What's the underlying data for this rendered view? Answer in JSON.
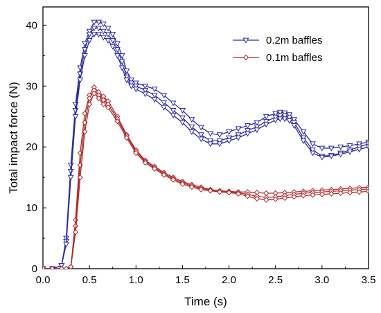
{
  "chart_data": {
    "type": "line",
    "xlabel": "Time (s)",
    "ylabel": "Total impact force (N)",
    "xlim": [
      0.0,
      3.5
    ],
    "ylim": [
      0,
      43
    ],
    "xticks": [
      "0.0",
      "0.5",
      "1.0",
      "1.5",
      "2.0",
      "2.5",
      "3.0",
      "3.5"
    ],
    "yticks": [
      "0",
      "10",
      "20",
      "30",
      "40"
    ],
    "grid": false,
    "legend_position": "top-right",
    "legend": [
      {
        "label": "0.2m baffles",
        "color": "#2b2ba0",
        "marker": "triangle-down"
      },
      {
        "label": "0.1m baffles",
        "color": "#b02a2a",
        "marker": "diamond"
      }
    ],
    "series": [
      {
        "group": "0.2m baffles",
        "color": "#2b2ba0",
        "marker": "triangle-down",
        "x": [
          0.0,
          0.1,
          0.2,
          0.25,
          0.3,
          0.35,
          0.4,
          0.45,
          0.5,
          0.55,
          0.6,
          0.65,
          0.7,
          0.75,
          0.8,
          0.85,
          0.9,
          0.95,
          1.0,
          1.1,
          1.2,
          1.3,
          1.4,
          1.5,
          1.6,
          1.7,
          1.8,
          1.9,
          2.0,
          2.1,
          2.2,
          2.3,
          2.4,
          2.5,
          2.55,
          2.6,
          2.65,
          2.7,
          2.8,
          2.9,
          3.0,
          3.1,
          3.2,
          3.3,
          3.4,
          3.5
        ],
        "y": [
          0,
          0,
          0.5,
          5,
          17,
          27,
          33,
          37,
          39,
          40.5,
          40.5,
          40.2,
          39.5,
          38.5,
          37,
          35,
          32.5,
          31,
          30.5,
          30,
          29.5,
          28.5,
          27.2,
          26,
          24.5,
          23.2,
          22.2,
          22,
          22.5,
          23,
          23.5,
          24,
          25,
          25.5,
          25.7,
          25.6,
          25.3,
          24.5,
          22.5,
          20.5,
          19.8,
          19.8,
          20,
          20.2,
          20.5,
          20.8
        ]
      },
      {
        "group": "0.2m baffles",
        "color": "#2b2ba0",
        "marker": "triangle-down",
        "x": [
          0.0,
          0.1,
          0.2,
          0.25,
          0.3,
          0.35,
          0.4,
          0.45,
          0.5,
          0.55,
          0.6,
          0.65,
          0.7,
          0.75,
          0.8,
          0.85,
          0.9,
          0.95,
          1.0,
          1.1,
          1.2,
          1.3,
          1.4,
          1.5,
          1.6,
          1.7,
          1.8,
          1.9,
          2.0,
          2.1,
          2.2,
          2.3,
          2.4,
          2.5,
          2.55,
          2.6,
          2.65,
          2.7,
          2.8,
          2.9,
          3.0,
          3.1,
          3.2,
          3.3,
          3.4,
          3.5
        ],
        "y": [
          0,
          0,
          0.5,
          4.5,
          16,
          26,
          32,
          36,
          38.5,
          39.5,
          39.5,
          39,
          38.5,
          37.5,
          36,
          34,
          31.5,
          30.5,
          30,
          29.3,
          28.5,
          27.3,
          26,
          24.8,
          23.3,
          22,
          21,
          21,
          21.5,
          22,
          22.7,
          23.3,
          24.2,
          24.9,
          25.1,
          25.1,
          24.8,
          24,
          21.5,
          19.5,
          18.5,
          18.6,
          19,
          19.5,
          20,
          20.5
        ]
      },
      {
        "group": "0.2m baffles",
        "color": "#2b2ba0",
        "marker": "triangle-down",
        "x": [
          0.0,
          0.1,
          0.2,
          0.25,
          0.3,
          0.35,
          0.4,
          0.45,
          0.5,
          0.55,
          0.6,
          0.65,
          0.7,
          0.75,
          0.8,
          0.85,
          0.9,
          0.95,
          1.0,
          1.1,
          1.2,
          1.3,
          1.4,
          1.5,
          1.6,
          1.7,
          1.8,
          1.9,
          2.0,
          2.1,
          2.2,
          2.3,
          2.4,
          2.5,
          2.55,
          2.6,
          2.65,
          2.7,
          2.8,
          2.9,
          3.0,
          3.1,
          3.2,
          3.3,
          3.4,
          3.5
        ],
        "y": [
          0,
          0,
          0.5,
          4,
          15,
          25,
          31,
          35,
          37.5,
          38.5,
          38.5,
          38,
          37.5,
          36.5,
          35,
          33,
          31,
          30,
          29.5,
          28.7,
          27.8,
          26.5,
          25.2,
          24,
          22.5,
          21.3,
          20.5,
          20.5,
          21,
          21.5,
          22.2,
          22.8,
          23.7,
          24.4,
          24.6,
          24.6,
          24.3,
          23.5,
          21,
          19,
          18.3,
          18.5,
          18.8,
          19.2,
          19.6,
          20
        ]
      },
      {
        "group": "0.1m baffles",
        "color": "#b02a2a",
        "marker": "diamond",
        "x": [
          0.0,
          0.1,
          0.2,
          0.25,
          0.3,
          0.35,
          0.4,
          0.45,
          0.5,
          0.55,
          0.6,
          0.65,
          0.7,
          0.8,
          0.9,
          1.0,
          1.1,
          1.2,
          1.3,
          1.4,
          1.5,
          1.6,
          1.7,
          1.8,
          1.9,
          2.0,
          2.1,
          2.2,
          2.3,
          2.4,
          2.5,
          2.6,
          2.7,
          2.8,
          2.9,
          3.0,
          3.1,
          3.2,
          3.3,
          3.4,
          3.5
        ],
        "y": [
          0,
          0,
          0,
          0,
          0.3,
          8,
          19,
          25.5,
          28.5,
          29.8,
          29,
          28.3,
          27.5,
          25,
          22,
          19.5,
          17.8,
          16.8,
          15.8,
          15,
          14.3,
          13.8,
          13.4,
          13,
          12.8,
          12.7,
          12.6,
          12.6,
          12.5,
          12.4,
          12.4,
          12.5,
          12.6,
          12.7,
          12.8,
          12.9,
          13,
          13.1,
          13.2,
          13.3,
          13.4
        ]
      },
      {
        "group": "0.1m baffles",
        "color": "#b02a2a",
        "marker": "diamond",
        "x": [
          0.0,
          0.1,
          0.2,
          0.25,
          0.3,
          0.35,
          0.4,
          0.45,
          0.5,
          0.55,
          0.6,
          0.65,
          0.7,
          0.8,
          0.9,
          1.0,
          1.1,
          1.2,
          1.3,
          1.4,
          1.5,
          1.6,
          1.7,
          1.8,
          1.9,
          2.0,
          2.1,
          2.2,
          2.3,
          2.4,
          2.5,
          2.6,
          2.7,
          2.8,
          2.9,
          3.0,
          3.1,
          3.2,
          3.3,
          3.4,
          3.5
        ],
        "y": [
          0,
          0,
          0,
          0,
          0.3,
          7,
          17,
          24,
          28,
          29.3,
          28.5,
          27.7,
          27,
          24.6,
          21.8,
          19.3,
          17.6,
          16.6,
          15.6,
          14.8,
          14.1,
          13.6,
          13.2,
          12.9,
          12.7,
          12.6,
          12.5,
          12.2,
          11.9,
          11.7,
          11.8,
          12,
          12.2,
          12.4,
          12.5,
          12.6,
          12.7,
          12.8,
          12.9,
          13,
          13.1
        ]
      },
      {
        "group": "0.1m baffles",
        "color": "#b02a2a",
        "marker": "diamond",
        "x": [
          0.0,
          0.1,
          0.2,
          0.25,
          0.3,
          0.35,
          0.4,
          0.45,
          0.5,
          0.55,
          0.6,
          0.65,
          0.7,
          0.8,
          0.9,
          1.0,
          1.1,
          1.2,
          1.3,
          1.4,
          1.5,
          1.6,
          1.7,
          1.8,
          1.9,
          2.0,
          2.1,
          2.2,
          2.3,
          2.4,
          2.5,
          2.6,
          2.7,
          2.8,
          2.9,
          3.0,
          3.1,
          3.2,
          3.3,
          3.4,
          3.5
        ],
        "y": [
          0,
          0,
          0,
          0,
          0.3,
          6,
          15,
          22.5,
          27,
          28.8,
          28,
          27,
          26.5,
          24.2,
          21.5,
          19,
          17.4,
          16.4,
          15.4,
          14.6,
          13.9,
          13.4,
          13,
          12.8,
          12.6,
          12.5,
          12.3,
          11.9,
          11.5,
          11.3,
          11.4,
          11.6,
          11.8,
          12,
          12.1,
          12.2,
          12.3,
          12.4,
          12.5,
          12.6,
          12.7
        ]
      }
    ]
  }
}
